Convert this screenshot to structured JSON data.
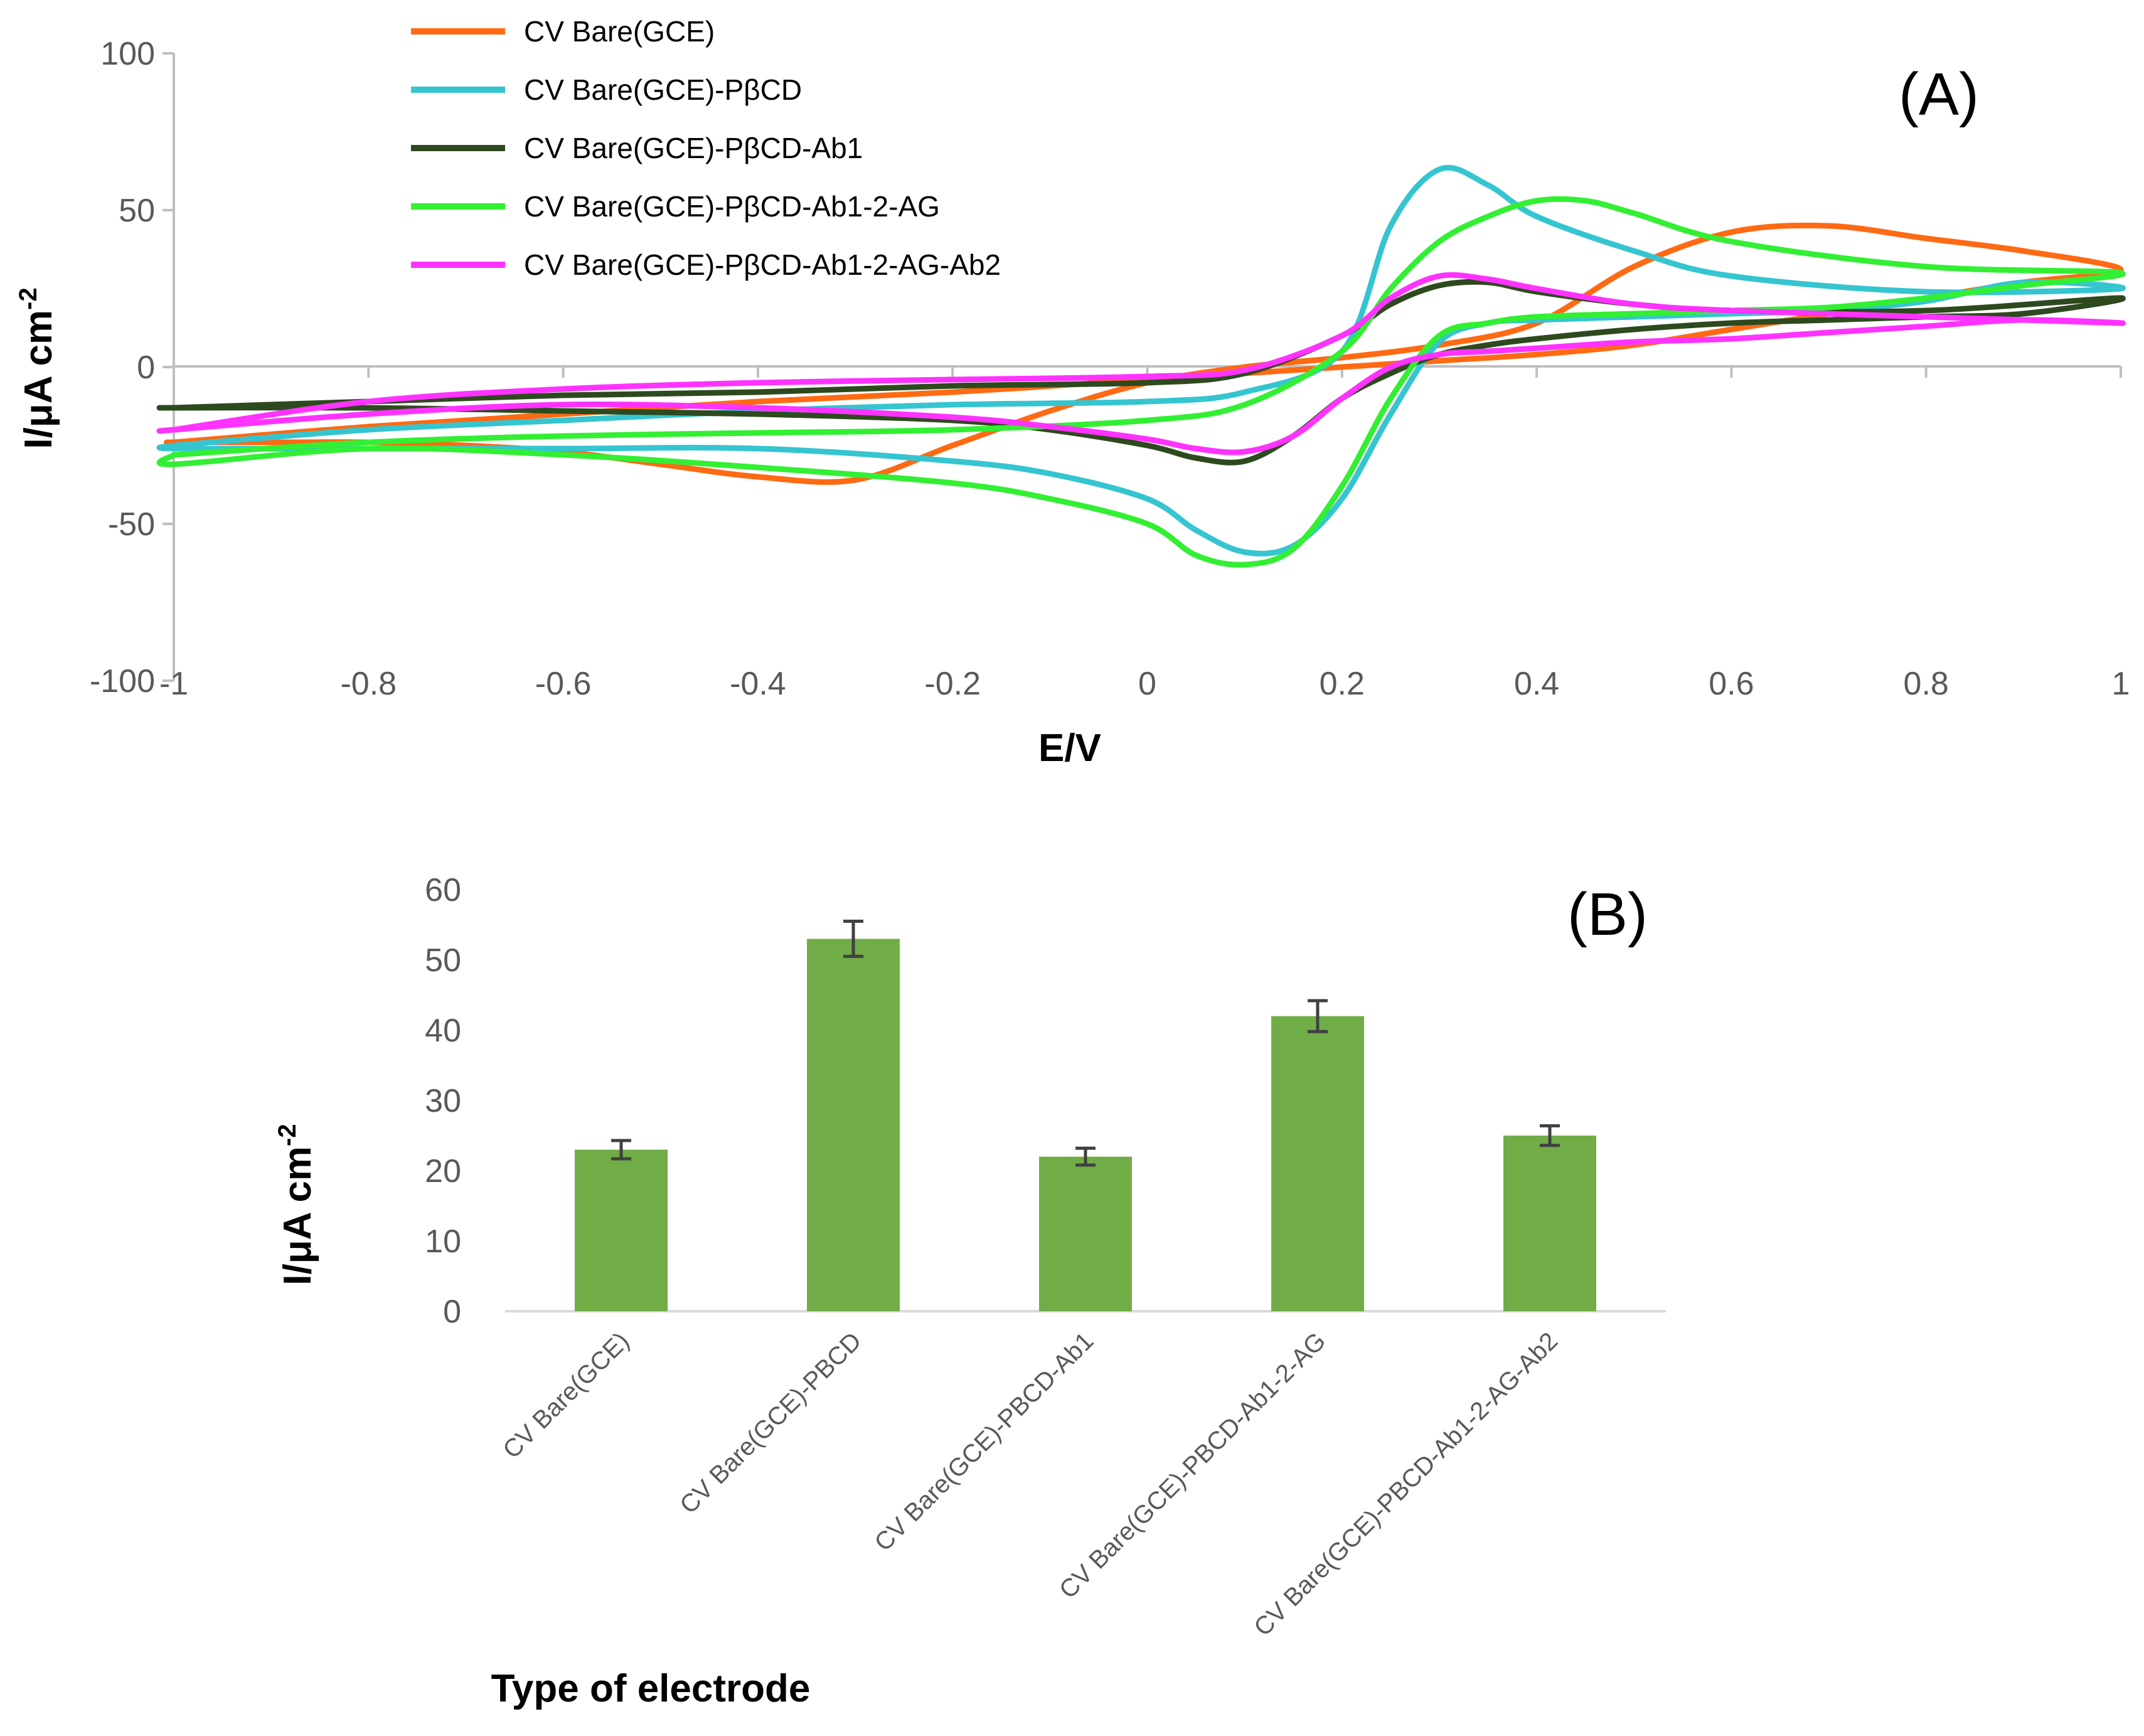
{
  "chart_data": [
    {
      "type": "line",
      "panel_label": "(A)",
      "xlabel": "E/V",
      "ylabel": "I/μA cm",
      "ylabel_sup": "-2",
      "xlim": [
        -1,
        1
      ],
      "ylim": [
        -100,
        100
      ],
      "x_ticks": [
        -1,
        -0.8,
        -0.6,
        -0.4,
        -0.2,
        0,
        0.2,
        0.4,
        0.6,
        0.8,
        1
      ],
      "x_tick_labels": [
        "-1",
        "-0.8",
        "-0.6",
        "-0.4",
        "-0.2",
        "0",
        "0.2",
        "0.4",
        "0.6",
        "0.8",
        "1"
      ],
      "y_ticks": [
        -100,
        -50,
        0,
        50,
        100
      ],
      "y_tick_labels": [
        "-100",
        "-50",
        "0",
        "50",
        "100"
      ],
      "grid": false,
      "legend_position": "top-left",
      "series": [
        {
          "name": "CV Bare(GCE)",
          "color": "#ff6a13",
          "x": [
            -1,
            -0.8,
            -0.6,
            -0.4,
            -0.2,
            0,
            0.1,
            0.2,
            0.3,
            0.4,
            0.5,
            0.6,
            0.7,
            0.8,
            0.9,
            1,
            0.9,
            0.8,
            0.7,
            0.6,
            0.5,
            0.4,
            0.3,
            0.2,
            0.1,
            0,
            -0.1,
            -0.2,
            -0.3,
            -0.4,
            -0.5,
            -0.6,
            -0.7,
            -0.8,
            -0.9,
            -1
          ],
          "y": [
            -24,
            -19,
            -15,
            -11,
            -8,
            -4,
            -2,
            0,
            2,
            4,
            7,
            12,
            17,
            22,
            27,
            31,
            37,
            41,
            45,
            43,
            32,
            14,
            7,
            3,
            0,
            -5,
            -14,
            -25,
            -36,
            -35,
            -31,
            -27,
            -25,
            -24,
            -24,
            -24
          ]
        },
        {
          "name": "CV Bare(GCE)-PβCD",
          "color": "#35c5d0",
          "x": [
            -1,
            -0.8,
            -0.6,
            -0.4,
            -0.2,
            0,
            0.1,
            0.2,
            0.25,
            0.3,
            0.35,
            0.4,
            0.5,
            0.6,
            0.8,
            1,
            0.9,
            0.8,
            0.7,
            0.6,
            0.5,
            0.4,
            0.35,
            0.3,
            0.25,
            0.2,
            0.15,
            0.1,
            0.05,
            0,
            -0.1,
            -0.2,
            -0.4,
            -0.6,
            -0.8,
            -1
          ],
          "y": [
            -25,
            -20,
            -17,
            -14,
            -12,
            -11,
            -8,
            5,
            45,
            63,
            58,
            48,
            37,
            29,
            24,
            25,
            27,
            21,
            18,
            17,
            16,
            15,
            14,
            8,
            -15,
            -42,
            -57,
            -59,
            -52,
            -42,
            -34,
            -30,
            -26,
            -26,
            -26,
            -26
          ]
        },
        {
          "name": "CV Bare(GCE)-PβCD-Ab1",
          "color": "#2d4a1e",
          "x": [
            -1,
            -0.8,
            -0.6,
            -0.4,
            -0.2,
            0,
            0.1,
            0.2,
            0.25,
            0.3,
            0.35,
            0.4,
            0.5,
            0.6,
            0.8,
            1,
            0.9,
            0.8,
            0.7,
            0.6,
            0.5,
            0.4,
            0.35,
            0.3,
            0.25,
            0.2,
            0.15,
            0.1,
            0.05,
            0,
            -0.1,
            -0.2,
            -0.4,
            -0.6,
            -0.8,
            -1
          ],
          "y": [
            -13,
            -11,
            -9,
            -8,
            -6,
            -5,
            -2,
            10,
            20,
            26,
            27,
            24,
            20,
            18,
            18,
            22,
            17,
            16,
            15,
            14,
            12,
            9,
            7,
            4,
            -2,
            -10,
            -22,
            -30,
            -29,
            -25,
            -20,
            -17,
            -15,
            -14,
            -13,
            -13
          ]
        },
        {
          "name": "CV Bare(GCE)-PβCD-Ab1-2-AG",
          "color": "#33ef33",
          "x": [
            -1,
            -0.8,
            -0.6,
            -0.4,
            -0.2,
            0,
            0.1,
            0.2,
            0.25,
            0.3,
            0.35,
            0.4,
            0.45,
            0.5,
            0.6,
            0.8,
            1,
            0.9,
            0.8,
            0.7,
            0.6,
            0.5,
            0.4,
            0.35,
            0.3,
            0.25,
            0.2,
            0.15,
            0.1,
            0.05,
            0,
            -0.1,
            -0.2,
            -0.4,
            -0.6,
            -0.8,
            -1
          ],
          "y": [
            -28,
            -24,
            -22,
            -21,
            -20,
            -17,
            -12,
            5,
            25,
            40,
            48,
            53,
            53,
            49,
            40,
            32,
            30,
            26,
            22,
            19,
            18,
            17,
            16,
            14,
            10,
            -10,
            -38,
            -58,
            -63,
            -60,
            -50,
            -42,
            -37,
            -32,
            -28,
            -26,
            -31
          ]
        },
        {
          "name": "CV Bare(GCE)-PβCD-Ab1-2-AG-Ab2",
          "color": "#ff33ff",
          "x": [
            -1,
            -0.8,
            -0.6,
            -0.4,
            -0.2,
            0,
            0.1,
            0.2,
            0.25,
            0.3,
            0.35,
            0.4,
            0.5,
            0.6,
            0.8,
            1,
            0.9,
            0.8,
            0.7,
            0.6,
            0.5,
            0.4,
            0.35,
            0.3,
            0.25,
            0.2,
            0.15,
            0.1,
            0.05,
            0,
            -0.1,
            -0.2,
            -0.4,
            -0.6,
            -0.8,
            -1
          ],
          "y": [
            -20,
            -11,
            -7,
            -5,
            -4,
            -3,
            -1,
            10,
            22,
            29,
            28,
            25,
            20,
            18,
            16,
            14,
            15,
            13,
            11,
            9,
            8,
            6,
            5,
            4,
            0,
            -10,
            -22,
            -27,
            -26,
            -23,
            -19,
            -16,
            -13,
            -12,
            -15,
            -20
          ]
        }
      ]
    },
    {
      "type": "bar",
      "panel_label": "(B)",
      "xlabel": "Type of electrode",
      "ylabel": "I/μA cm",
      "ylabel_sup": "-2",
      "ylim": [
        0,
        60
      ],
      "y_ticks": [
        0,
        10,
        20,
        30,
        40,
        50,
        60
      ],
      "y_tick_labels": [
        "0",
        "10",
        "20",
        "30",
        "40",
        "50",
        "60"
      ],
      "grid": false,
      "bar_color": "#70ad47",
      "error_color": "#404040",
      "categories": [
        "CV Bare(GCE)",
        "CV Bare(GCE)-PBCD",
        "CV Bare(GCE)-PBCD-Ab1",
        "CV Bare(GCE)-PBCD-Ab1-2-AG",
        "CV Bare(GCE)-PBCD-Ab1-2-AG-Ab2"
      ],
      "values": [
        23,
        53,
        22,
        42,
        25
      ],
      "errors": [
        1.3,
        2.5,
        1.2,
        2.2,
        1.4
      ]
    }
  ]
}
